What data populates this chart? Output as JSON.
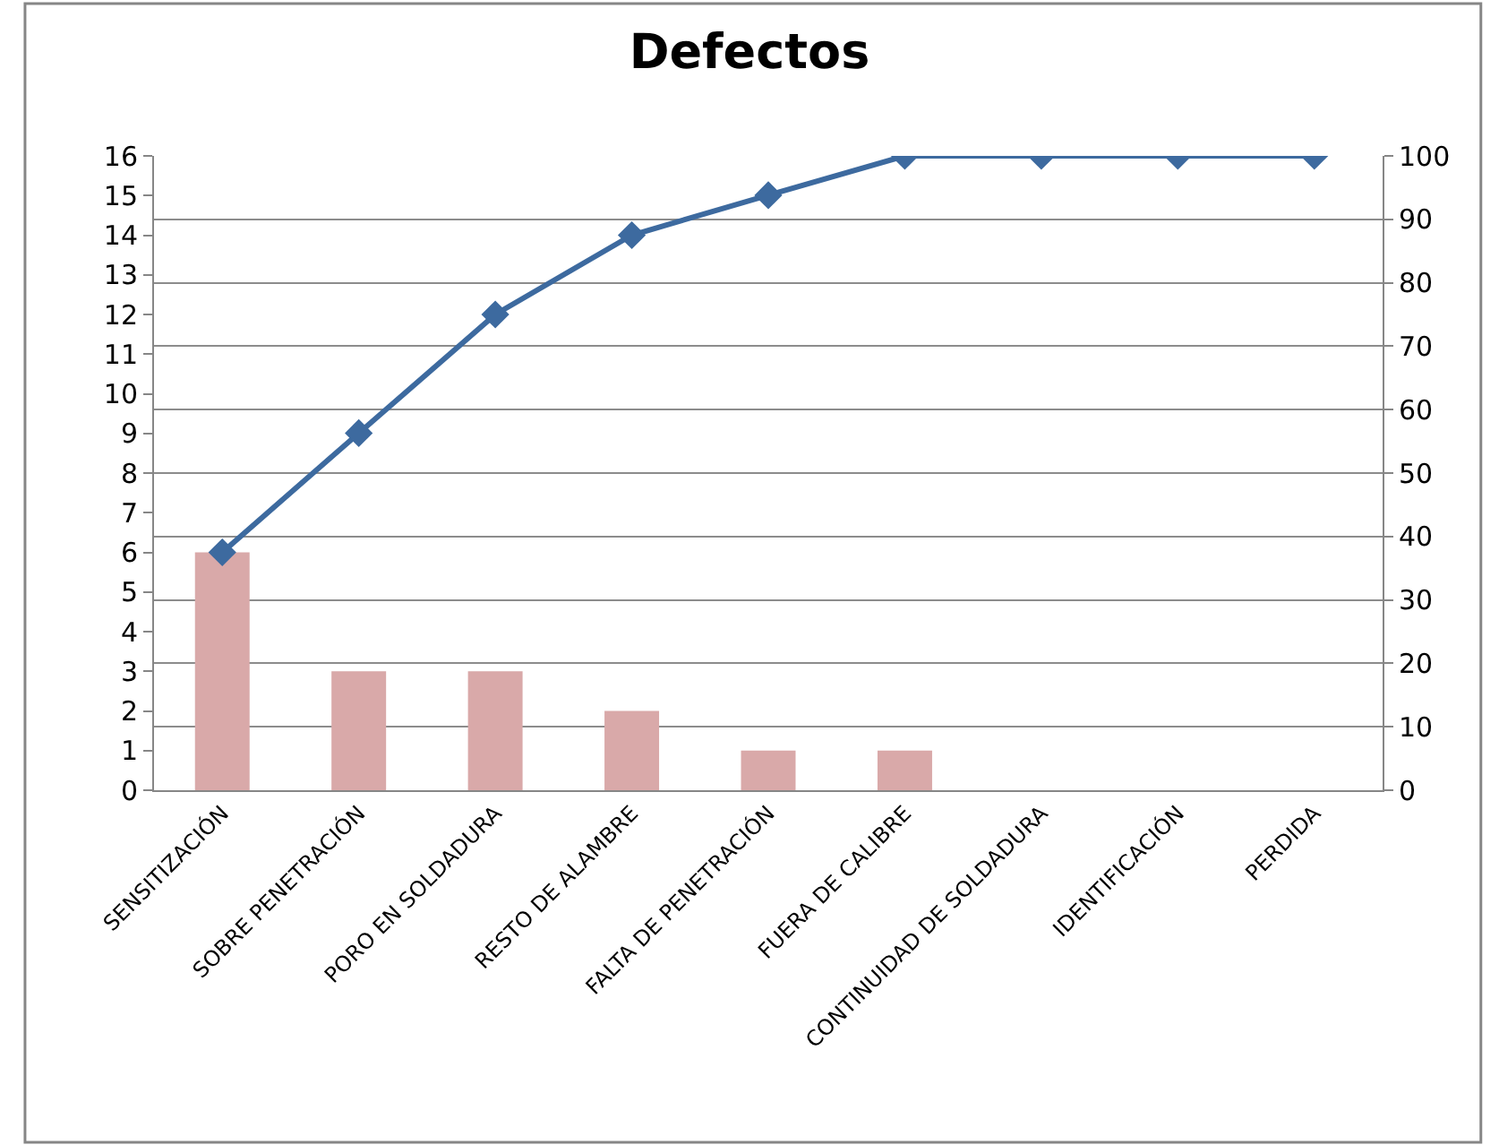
{
  "chart_data": {
    "type": "bar",
    "title": "Defectos",
    "categories": [
      "SENSITIZACIÓN",
      "SOBRE PENETRACIÓN",
      "PORO EN SOLDADURA",
      "RESTO DE ALAMBRE",
      "FALTA DE PENETRACIÓN",
      "FUERA DE CALIBRE",
      "CONTINUIDAD DE SOLDADURA",
      "IDENTIFICACIÓN",
      "PERDIDA"
    ],
    "series": [
      {
        "color": "#d9a9a9",
        "values": [
          6,
          3,
          3,
          2,
          1,
          1,
          0,
          0,
          0
        ]
      },
      {
        "type": "line",
        "axis": "y2",
        "color": "#3d6a9f",
        "marker": "diamond",
        "line_style": "solid",
        "values": [
          37.5,
          56.3,
          75,
          87.5,
          93.8,
          100,
          100,
          100,
          100
        ]
      }
    ],
    "ylim": [
      0,
      16
    ],
    "yticks": [
      0,
      1,
      2,
      3,
      4,
      5,
      6,
      7,
      8,
      9,
      10,
      11,
      12,
      13,
      14,
      15,
      16
    ],
    "y2lim": [
      0,
      100
    ],
    "y2ticks": [
      0,
      10,
      20,
      30,
      40,
      50,
      60,
      70,
      80,
      90,
      100
    ],
    "grid": true
  }
}
